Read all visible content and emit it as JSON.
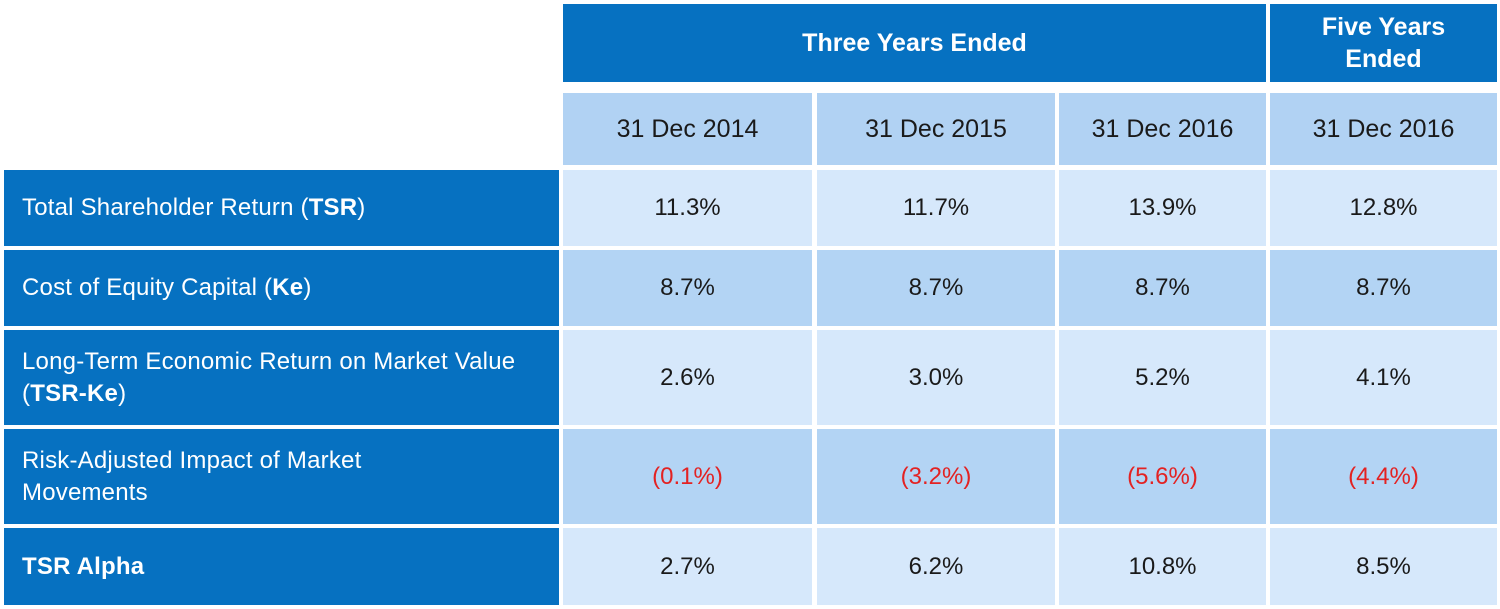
{
  "table": {
    "group_headers": [
      {
        "label": "Three Years Ended"
      },
      {
        "label": "Five Years Ended"
      }
    ],
    "column_headers": [
      "31 Dec 2014",
      "31 Dec 2015",
      "31 Dec 2016",
      "31 Dec 2016"
    ],
    "rows": [
      {
        "label_pre": "Total Shareholder Return (",
        "label_bold": "TSR",
        "label_post": ")",
        "values": [
          "11.3%",
          "11.7%",
          "13.9%",
          "12.8%"
        ]
      },
      {
        "label_pre": "Cost of Equity Capital (",
        "label_bold": "Ke",
        "label_post": ")",
        "values": [
          "8.7%",
          "8.7%",
          "8.7%",
          "8.7%"
        ]
      },
      {
        "label_pre": "Long-Term Economic Return on Market Value (",
        "label_bold": "TSR-Ke",
        "label_post": ")",
        "values": [
          "2.6%",
          "3.0%",
          "5.2%",
          "4.1%"
        ]
      },
      {
        "label_pre": "Risk-Adjusted Impact of Market Movements",
        "label_bold": "",
        "label_post": "",
        "values": [
          "(0.1%)",
          "(3.2%)",
          "(5.6%)",
          "(4.4%)"
        ]
      },
      {
        "label_pre": "",
        "label_bold": "TSR Alpha",
        "label_post": "",
        "values": [
          "2.7%",
          "6.2%",
          "10.8%",
          "8.5%"
        ]
      }
    ]
  },
  "colors": {
    "header_blue": "#0671c1",
    "date_header_bg": "#b1d2f3",
    "value_light_bg": "#d6e8fb",
    "value_mid_bg": "#b3d4f4",
    "negative_text": "#e32222"
  }
}
